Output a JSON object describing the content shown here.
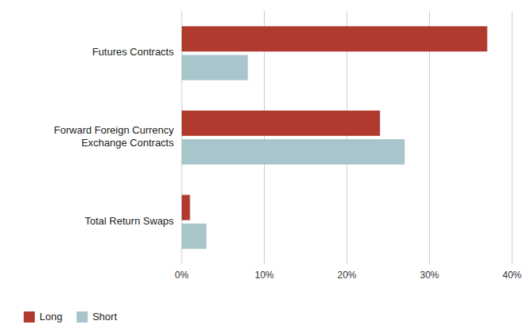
{
  "chart_data": {
    "type": "bar",
    "orientation": "horizontal",
    "categories": [
      "Total Return Swaps",
      "Forward Foreign Currency\nExchange Contracts",
      "Futures Contracts"
    ],
    "series": [
      {
        "name": "Long",
        "color": "#B03A2E",
        "values": [
          1.0,
          24.0,
          37.0
        ]
      },
      {
        "name": "Short",
        "color": "#A8C5CB",
        "values": [
          3.0,
          27.0,
          8.0
        ]
      }
    ],
    "xlim": [
      0,
      40
    ],
    "xticks": [
      {
        "value": 0,
        "label": "0%"
      },
      {
        "value": 10,
        "label": "10%"
      },
      {
        "value": 20,
        "label": "20%"
      },
      {
        "value": 30,
        "label": "30%"
      },
      {
        "value": 40,
        "label": "40%"
      }
    ],
    "grid": true,
    "legend": "lower left"
  }
}
